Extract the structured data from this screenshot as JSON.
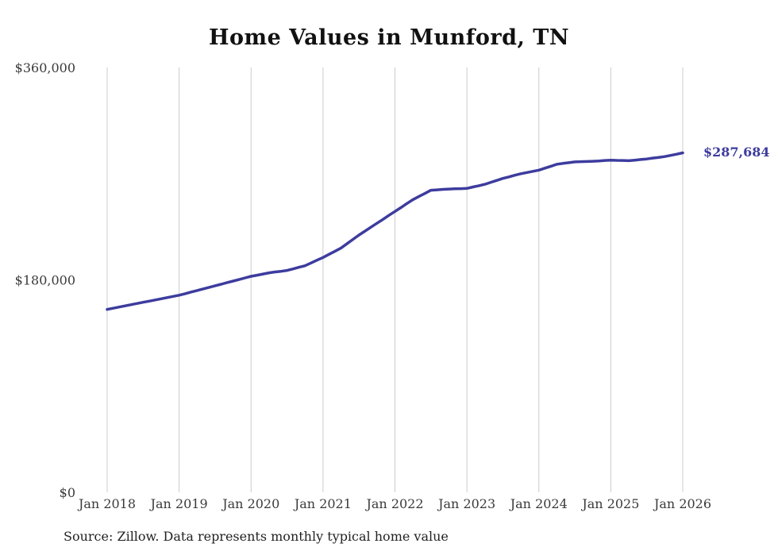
{
  "title": "Home Values in Munford, TN",
  "end_label": "$287,684",
  "source_note": "Source: Zillow. Data represents monthly typical home value",
  "colors": {
    "line": "#3d3c9e",
    "end_label": "#3d3c9e",
    "grid": "#cccccc",
    "tick_text": "#3a3a3a",
    "title_text": "#111111"
  },
  "chart_data": {
    "type": "line",
    "title": "Home Values in Munford, TN",
    "xlabel": "",
    "ylabel": "",
    "x_start": "2018-01",
    "x_interval": "monthly",
    "x_tick_labels": [
      "Jan 2018",
      "Jan 2019",
      "Jan 2020",
      "Jan 2021",
      "Jan 2022",
      "Jan 2023",
      "Jan 2024",
      "Jan 2025",
      "Jan 2026"
    ],
    "y_tick_labels": [
      "$0",
      "$180,000",
      "$360,000"
    ],
    "y_ticks": [
      0,
      180000,
      360000
    ],
    "ylim": [
      0,
      360000
    ],
    "grid": "vertical-only",
    "legend": "none",
    "end_value_annotation": "$287,684",
    "values": [
      155000,
      156000,
      157000,
      158000,
      159000,
      160000,
      161000,
      162000,
      163000,
      164000,
      165000,
      166000,
      167000,
      168300,
      169700,
      171000,
      172300,
      173700,
      175000,
      176300,
      177700,
      179000,
      180300,
      181700,
      183000,
      184000,
      185000,
      186000,
      186700,
      187300,
      188000,
      189300,
      190700,
      192000,
      194300,
      196700,
      199000,
      201700,
      204300,
      207000,
      210700,
      214300,
      218000,
      221300,
      224700,
      228000,
      231300,
      234700,
      238000,
      241300,
      244700,
      248000,
      250700,
      253300,
      256000,
      256300,
      256700,
      257000,
      257200,
      257300,
      257500,
      258700,
      259800,
      261000,
      262700,
      264300,
      266000,
      267300,
      268700,
      270000,
      271000,
      272000,
      273000,
      274700,
      276300,
      278000,
      278700,
      279300,
      280000,
      280200,
      280300,
      280500,
      280800,
      281200,
      281500,
      281300,
      281200,
      281000,
      281500,
      282000,
      282500,
      283200,
      283800,
      284500,
      285500,
      286500,
      287684
    ]
  }
}
